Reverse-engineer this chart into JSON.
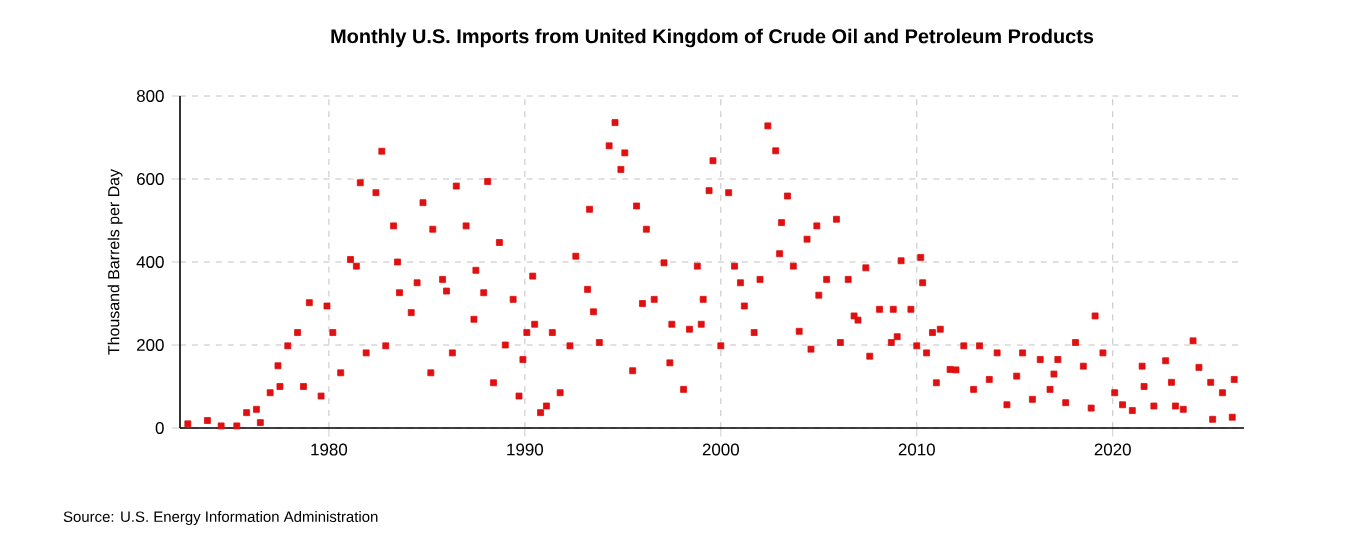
{
  "chart_data": {
    "type": "scatter",
    "title": "Monthly U.S. Imports from United Kingdom of Crude Oil and Petroleum Products",
    "ylabel": "Thousand Barrels per Day",
    "annotations": [
      "Source: U.S. Energy Information Administration"
    ],
    "x": [
      1972.8,
      1973.8,
      1974.5,
      1975.3,
      1975.8,
      1976.3,
      1976.5,
      1977.0,
      1977.4,
      1977.5,
      1977.9,
      1978.4,
      1978.7,
      1979.0,
      1979.6,
      1979.9,
      1980.2,
      1980.6,
      1981.1,
      1981.4,
      1981.6,
      1981.9,
      1982.4,
      1982.7,
      1982.9,
      1983.3,
      1983.5,
      1983.6,
      1984.2,
      1984.5,
      1984.8,
      1985.2,
      1985.3,
      1985.8,
      1986.0,
      1986.3,
      1986.5,
      1987.0,
      1987.4,
      1987.5,
      1987.9,
      1988.1,
      1988.4,
      1988.7,
      1989.0,
      1989.4,
      1989.7,
      1989.9,
      1990.1,
      1990.4,
      1990.5,
      1990.8,
      1991.1,
      1991.4,
      1991.8,
      1992.3,
      1992.6,
      1993.2,
      1993.3,
      1993.5,
      1993.8,
      1994.3,
      1994.6,
      1994.9,
      1995.1,
      1995.5,
      1995.7,
      1996.0,
      1996.2,
      1996.6,
      1997.1,
      1997.4,
      1997.5,
      1998.1,
      1998.4,
      1998.8,
      1999.0,
      1999.1,
      1999.4,
      1999.6,
      2000.0,
      2000.4,
      2000.7,
      2001.0,
      2001.2,
      2001.7,
      2002.0,
      2002.4,
      2002.8,
      2003.0,
      2003.1,
      2003.4,
      2003.7,
      2004.0,
      2004.4,
      2004.6,
      2004.9,
      2005.0,
      2005.4,
      2005.9,
      2006.1,
      2006.5,
      2006.8,
      2007.0,
      2007.4,
      2007.6,
      2008.1,
      2008.7,
      2008.8,
      2009.0,
      2009.2,
      2009.7,
      2010.0,
      2010.2,
      2010.3,
      2010.5,
      2010.8,
      2011.0,
      2011.2,
      2011.7,
      2012.0,
      2012.4,
      2012.9,
      2013.2,
      2013.7,
      2014.1,
      2014.6,
      2015.1,
      2015.4,
      2015.9,
      2016.3,
      2016.8,
      2017.0,
      2017.2,
      2017.6,
      2018.1,
      2018.5,
      2018.9,
      2019.1,
      2019.5,
      2020.1,
      2020.5,
      2021.0,
      2021.5,
      2021.6,
      2022.1,
      2022.7,
      2023.0,
      2023.2,
      2023.6,
      2024.1,
      2024.4,
      2025.0,
      2025.1,
      2025.6,
      2026.1,
      2026.2
    ],
    "values": [
      10,
      18,
      5,
      5,
      37,
      45,
      13,
      85,
      150,
      100,
      198,
      230,
      100,
      302,
      77,
      294,
      230,
      133,
      406,
      390,
      591,
      181,
      567,
      667,
      198,
      487,
      400,
      326,
      278,
      350,
      543,
      133,
      479,
      358,
      330,
      181,
      583,
      487,
      262,
      380,
      326,
      594,
      109,
      447,
      200,
      310,
      77,
      165,
      230,
      366,
      250,
      37,
      53,
      230,
      85,
      198,
      414,
      334,
      527,
      280,
      206,
      680,
      736,
      623,
      663,
      138,
      535,
      300,
      479,
      310,
      398,
      157,
      250,
      93,
      238,
      390,
      250,
      310,
      572,
      644,
      198,
      567,
      390,
      350,
      294,
      230,
      358,
      728,
      668,
      420,
      495,
      559,
      390,
      233,
      455,
      190,
      487,
      320,
      358,
      503,
      206,
      358,
      270,
      260,
      386,
      173,
      286,
      206,
      286,
      220,
      403,
      286,
      198,
      411,
      350,
      181,
      230,
      109,
      238,
      141,
      140,
      198,
      93,
      198,
      117,
      181,
      56,
      125,
      181,
      69,
      165,
      93,
      130,
      165,
      61,
      206,
      149,
      48,
      270,
      181,
      85,
      56,
      42,
      149,
      100,
      53,
      162,
      110,
      53,
      45,
      210,
      146,
      110,
      21,
      85,
      26,
      117
    ],
    "color": "#e01010",
    "marker": "square",
    "grid": true,
    "xlim": [
      1972.4,
      2026.7
    ],
    "ylim": [
      0,
      800
    ],
    "xticks": [
      1980,
      1990,
      2000,
      2010,
      2020
    ],
    "yticks": [
      0,
      200,
      400,
      600,
      800
    ]
  }
}
